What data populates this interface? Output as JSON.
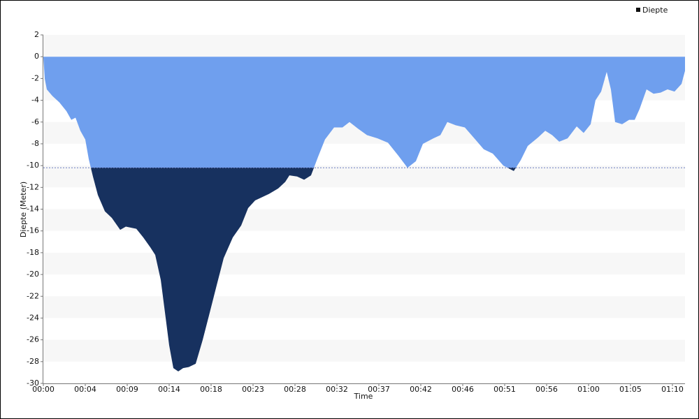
{
  "chart_data": {
    "type": "area",
    "y_label": "Diepte (Meter)",
    "x_label": "Time",
    "legend": "top-right",
    "grid": true,
    "threshold": -10.2,
    "above_color": "#6f9fee",
    "below_color": "#17315f",
    "threshold_color": "#6c7fc0",
    "x": [
      0,
      0.15,
      0.38,
      0.99,
      1.76,
      2.53,
      3.07,
      3.53,
      4.06,
      4.6,
      4.98,
      5.44,
      5.98,
      6.75,
      7.51,
      8.43,
      9.05,
      10.2,
      10.96,
      11.73,
      12.27,
      12.88,
      13.42,
      13.8,
      14.26,
      14.8,
      15.33,
      15.95,
      16.71,
      17.48,
      18.25,
      19.01,
      19.78,
      20.78,
      21.7,
      22.46,
      23.23,
      23.99,
      24.76,
      25.76,
      26.53,
      26.99,
      27.83,
      28.6,
      29.36,
      30.13,
      30.89,
      31.89,
      32.81,
      33.58,
      34.5,
      35.5,
      36.65,
      37.8,
      38.95,
      39.94,
      40.86,
      41.63,
      42.78,
      43.55,
      44.31,
      45.23,
      46.23,
      47.38,
      48.3,
      49.3,
      50.45,
      51.6,
      52.36,
      53.13,
      54.28,
      55.05,
      55.81,
      56.58,
      57.5,
      58.5,
      59.26,
      60.03,
      60.56,
      61.18,
      61.79,
      62.25,
      62.71,
      63.48,
      64.25,
      64.86,
      65.4,
      66.16,
      66.93,
      67.7,
      68.46,
      69.23,
      70,
      70.38
    ],
    "series": [
      {
        "name": "Diepte",
        "color": "#111111",
        "values": [
          0,
          -2,
          -3,
          -3.6,
          -4.2,
          -5,
          -5.8,
          -5.6,
          -6.8,
          -7.6,
          -9.4,
          -11,
          -12.7,
          -14.2,
          -14.8,
          -15.9,
          -15.6,
          -15.8,
          -16.6,
          -17.5,
          -18.2,
          -20.5,
          -24,
          -26.5,
          -28.6,
          -28.9,
          -28.6,
          -28.5,
          -28.2,
          -26,
          -23.5,
          -21,
          -18.5,
          -16.6,
          -15.5,
          -13.9,
          -13.2,
          -12.9,
          -12.6,
          -12.1,
          -11.5,
          -10.9,
          -11,
          -11.3,
          -10.9,
          -9.2,
          -7.6,
          -6.5,
          -6.5,
          -6,
          -6.6,
          -7.2,
          -7.5,
          -7.9,
          -9.1,
          -10.2,
          -9.6,
          -8,
          -7.5,
          -7.2,
          -6,
          -6.3,
          -6.5,
          -7.6,
          -8.5,
          -8.9,
          -10,
          -10.5,
          -9.5,
          -8.2,
          -7.4,
          -6.8,
          -7.2,
          -7.8,
          -7.5,
          -6.4,
          -7,
          -6.2,
          -4,
          -3.2,
          -1.4,
          -3,
          -6,
          -6.2,
          -5.8,
          -5.8,
          -4.8,
          -3,
          -3.4,
          -3.3,
          -3,
          -3.2,
          -2.5,
          -1.3
        ]
      }
    ],
    "xlim": [
      0,
      70.38
    ],
    "xticks": [
      {
        "value": 0,
        "label": "00:00"
      },
      {
        "value": 4.6,
        "label": "00:04"
      },
      {
        "value": 9.2,
        "label": "00:09"
      },
      {
        "value": 13.8,
        "label": "00:14"
      },
      {
        "value": 18.4,
        "label": "00:18"
      },
      {
        "value": 23,
        "label": "00:23"
      },
      {
        "value": 27.6,
        "label": "00:28"
      },
      {
        "value": 32.2,
        "label": "00:32"
      },
      {
        "value": 36.8,
        "label": "00:37"
      },
      {
        "value": 41.4,
        "label": "00:42"
      },
      {
        "value": 46,
        "label": "00:46"
      },
      {
        "value": 50.6,
        "label": "00:51"
      },
      {
        "value": 55.2,
        "label": "00:56"
      },
      {
        "value": 59.8,
        "label": "01:00"
      },
      {
        "value": 64.4,
        "label": "01:05"
      },
      {
        "value": 69,
        "label": "01:10"
      }
    ],
    "ylim": [
      -30,
      2
    ],
    "yticks": [
      2,
      0,
      -2,
      -4,
      -6,
      -8,
      -10,
      -12,
      -14,
      -16,
      -18,
      -20,
      -22,
      -24,
      -26,
      -28,
      -30
    ]
  }
}
